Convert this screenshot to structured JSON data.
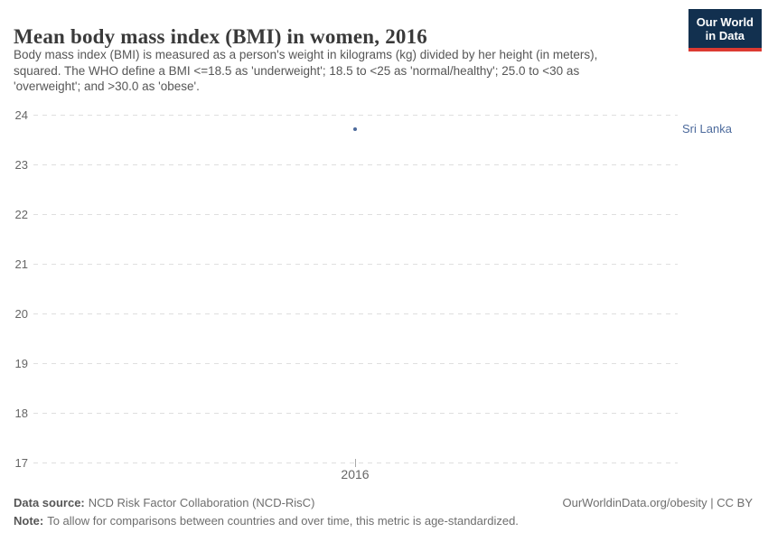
{
  "header": {
    "title": "Mean body mass index (BMI) in women, 2016",
    "logo": {
      "line1": "Our World",
      "line2": "in Data"
    }
  },
  "subtitle_lines": [
    "Body mass index (BMI) is measured as a person's weight in kilograms (kg) divided by her height (in meters),",
    "squared. The WHO define a BMI <=18.5 as 'underweight'; 18.5 to <25 as 'normal/healthy'; 25.0 to <30 as",
    "'overweight'; and >30.0 as 'obese'."
  ],
  "chart_data": {
    "type": "scatter",
    "title": "Mean body mass index (BMI) in women, 2016",
    "xlabel": "",
    "ylabel": "",
    "x_tick_labels": [
      "2016"
    ],
    "y_ticks": [
      24,
      23,
      22,
      21,
      20,
      19,
      18,
      17
    ],
    "ylim": [
      17,
      24
    ],
    "grid": "horizontal-dashed",
    "legend_position": "entity-label-right",
    "series": [
      {
        "name": "Sri Lanka",
        "x": [
          2016
        ],
        "values": [
          23.7
        ],
        "color": "#4c6a9c"
      }
    ]
  },
  "footer": {
    "data_source_label": "Data source:",
    "data_source_value": "NCD Risk Factor Collaboration (NCD-RisC)",
    "attribution": "OurWorldinData.org/obesity | CC BY",
    "note_label": "Note:",
    "note_value": "To allow for comparisons between countries and over time, this metric is age-standardized."
  },
  "colors": {
    "accent": "#4c6a9c",
    "logo_bg": "#12304f",
    "logo_stripe": "#dc3a32",
    "gridline": "#dfdfdf",
    "tick_text": "#666666"
  }
}
